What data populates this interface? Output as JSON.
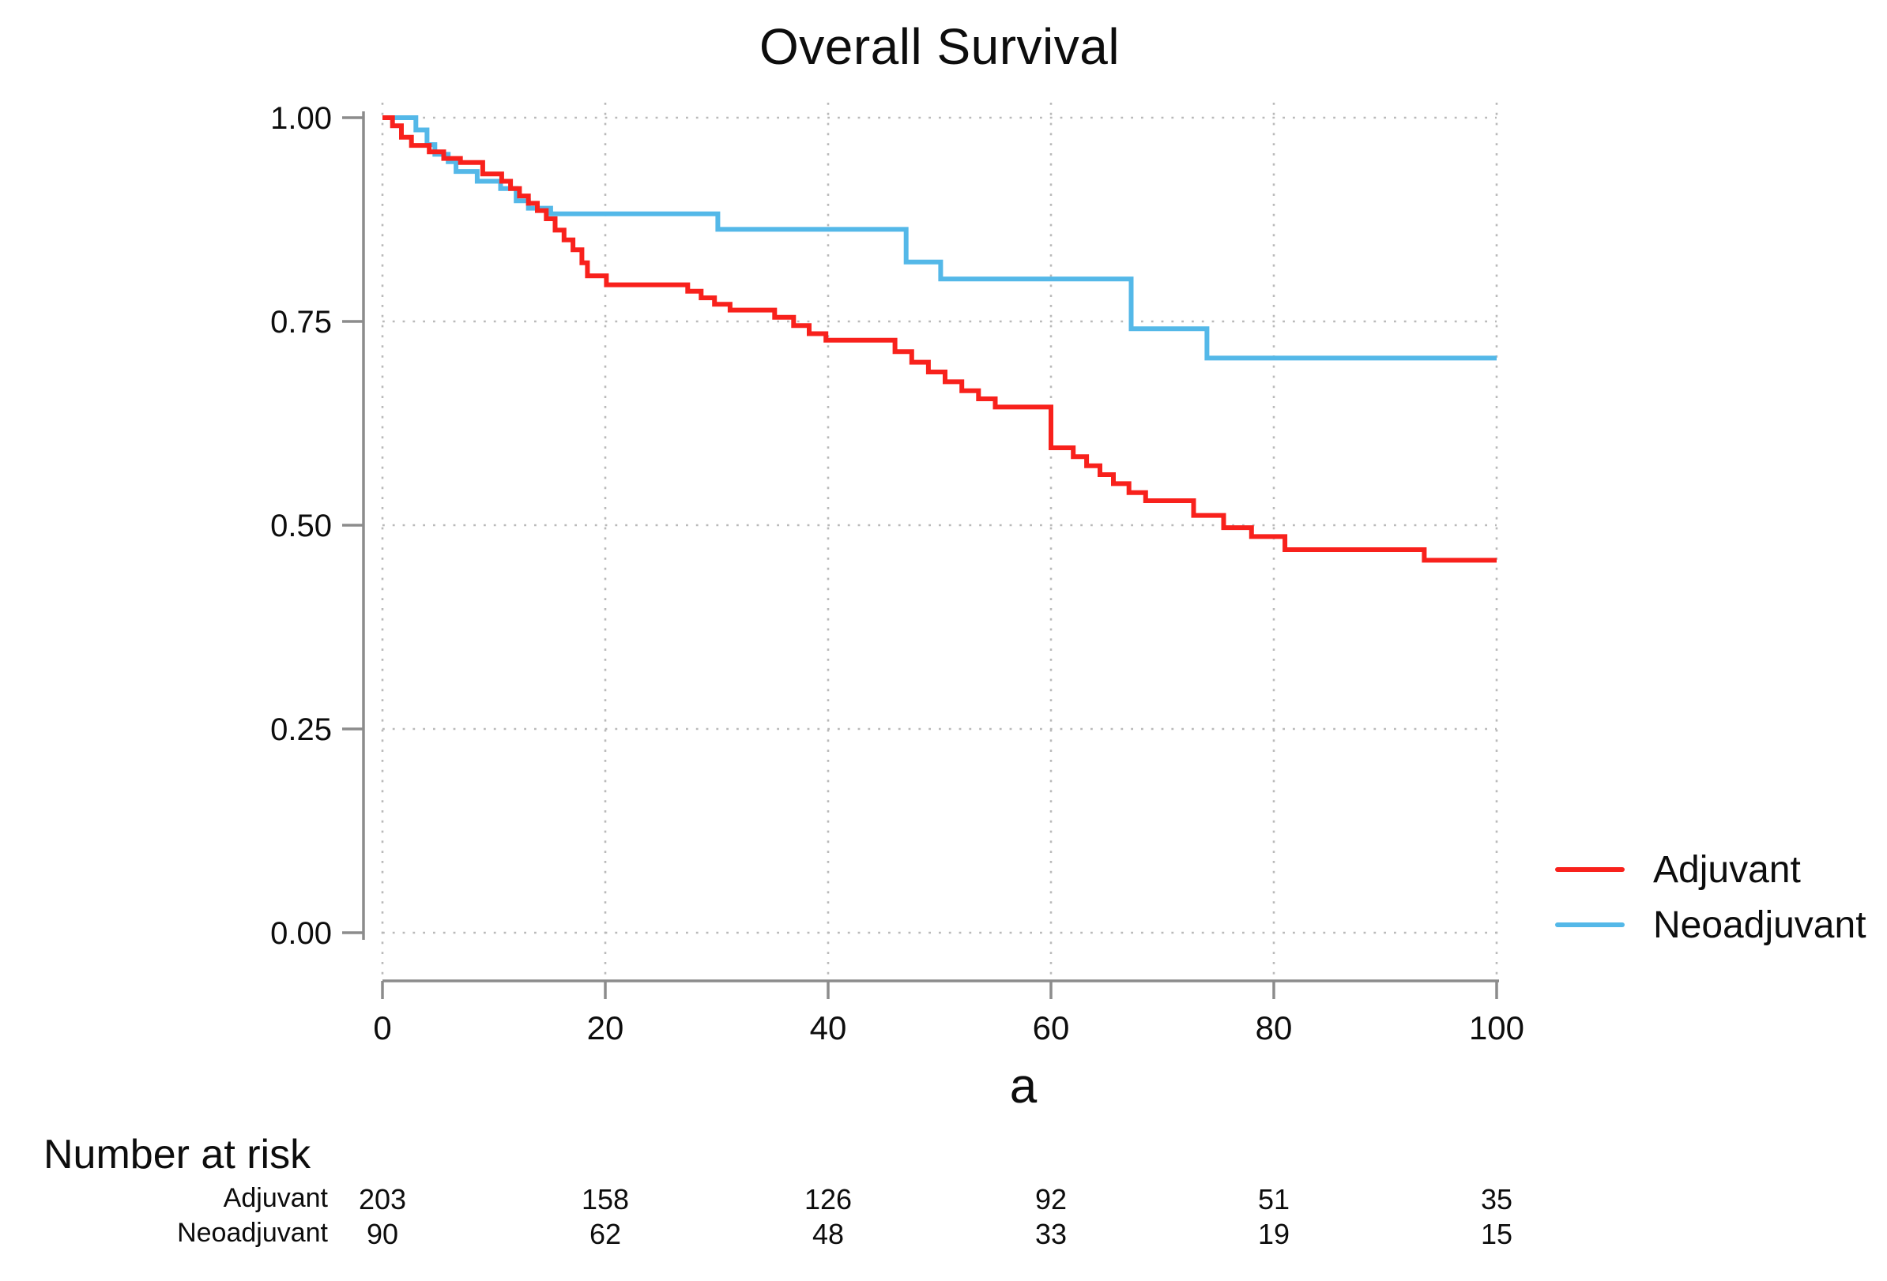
{
  "chart_data": {
    "type": "line",
    "subtype": "kaplan-meier-step",
    "title": "Overall Survival",
    "xlabel": "a",
    "ylabel": "",
    "xlim": [
      0,
      100
    ],
    "ylim": [
      0.0,
      1.0
    ],
    "xticks": [
      0,
      20,
      40,
      60,
      80,
      100
    ],
    "yticks": [
      1.0,
      0.75,
      0.5,
      0.25,
      0.0
    ],
    "ytick_labels": [
      "1.00",
      "0.75",
      "0.50",
      "0.25",
      "0.00"
    ],
    "grid": "dotted major gridlines, horizontal and vertical",
    "legend_position": "right, lower third",
    "axis_color": "#8c8c8c",
    "grid_color": "#b9b9b9",
    "text_color": "#0d0d0d",
    "series": [
      {
        "name": "Adjuvant",
        "color": "#f8211c",
        "step": true,
        "points": [
          [
            0,
            1.0
          ],
          [
            0.9,
            0.99
          ],
          [
            1.7,
            0.976
          ],
          [
            2.6,
            0.966
          ],
          [
            4.2,
            0.958
          ],
          [
            5.5,
            0.95
          ],
          [
            7.0,
            0.945
          ],
          [
            9.0,
            0.931
          ],
          [
            10.7,
            0.922
          ],
          [
            11.5,
            0.913
          ],
          [
            12.3,
            0.904
          ],
          [
            13.1,
            0.895
          ],
          [
            13.9,
            0.886
          ],
          [
            14.7,
            0.876
          ],
          [
            15.5,
            0.862
          ],
          [
            16.3,
            0.85
          ],
          [
            17.1,
            0.838
          ],
          [
            17.9,
            0.822
          ],
          [
            18.4,
            0.806
          ],
          [
            20.1,
            0.795
          ],
          [
            27.4,
            0.787
          ],
          [
            28.6,
            0.779
          ],
          [
            29.8,
            0.771
          ],
          [
            31.2,
            0.764
          ],
          [
            35.2,
            0.755
          ],
          [
            36.9,
            0.745
          ],
          [
            38.3,
            0.735
          ],
          [
            39.8,
            0.727
          ],
          [
            46.0,
            0.713
          ],
          [
            47.5,
            0.7
          ],
          [
            49.0,
            0.688
          ],
          [
            50.5,
            0.676
          ],
          [
            52.0,
            0.665
          ],
          [
            53.5,
            0.655
          ],
          [
            55.0,
            0.645
          ],
          [
            60.0,
            0.595
          ],
          [
            62.0,
            0.584
          ],
          [
            63.2,
            0.573
          ],
          [
            64.4,
            0.562
          ],
          [
            65.6,
            0.551
          ],
          [
            67.0,
            0.54
          ],
          [
            68.5,
            0.53
          ],
          [
            72.8,
            0.512
          ],
          [
            75.5,
            0.497
          ],
          [
            78.0,
            0.486
          ],
          [
            81.0,
            0.47
          ],
          [
            93.5,
            0.457
          ],
          [
            100,
            0.457
          ]
        ]
      },
      {
        "name": "Neoadjuvant",
        "color": "#54b8e8",
        "step": true,
        "points": [
          [
            0,
            1.0
          ],
          [
            3.0,
            0.985
          ],
          [
            4.0,
            0.967
          ],
          [
            4.7,
            0.955
          ],
          [
            5.9,
            0.946
          ],
          [
            6.6,
            0.934
          ],
          [
            8.5,
            0.922
          ],
          [
            10.6,
            0.913
          ],
          [
            12.0,
            0.898
          ],
          [
            13.1,
            0.889
          ],
          [
            15.1,
            0.882
          ],
          [
            30.1,
            0.863
          ],
          [
            47.0,
            0.823
          ],
          [
            50.1,
            0.802
          ],
          [
            67.2,
            0.741
          ],
          [
            74.0,
            0.705
          ],
          [
            100,
            0.705
          ]
        ]
      }
    ]
  },
  "risk_table": {
    "heading": "Number at risk",
    "time_points": [
      0,
      20,
      40,
      60,
      80,
      100
    ],
    "rows": [
      {
        "label": "Adjuvant",
        "values": [
          "203",
          "158",
          "126",
          "92",
          "51",
          "35"
        ]
      },
      {
        "label": "Neoadjuvant",
        "values": [
          "90",
          "62",
          "48",
          "33",
          "19",
          "15"
        ]
      }
    ]
  }
}
